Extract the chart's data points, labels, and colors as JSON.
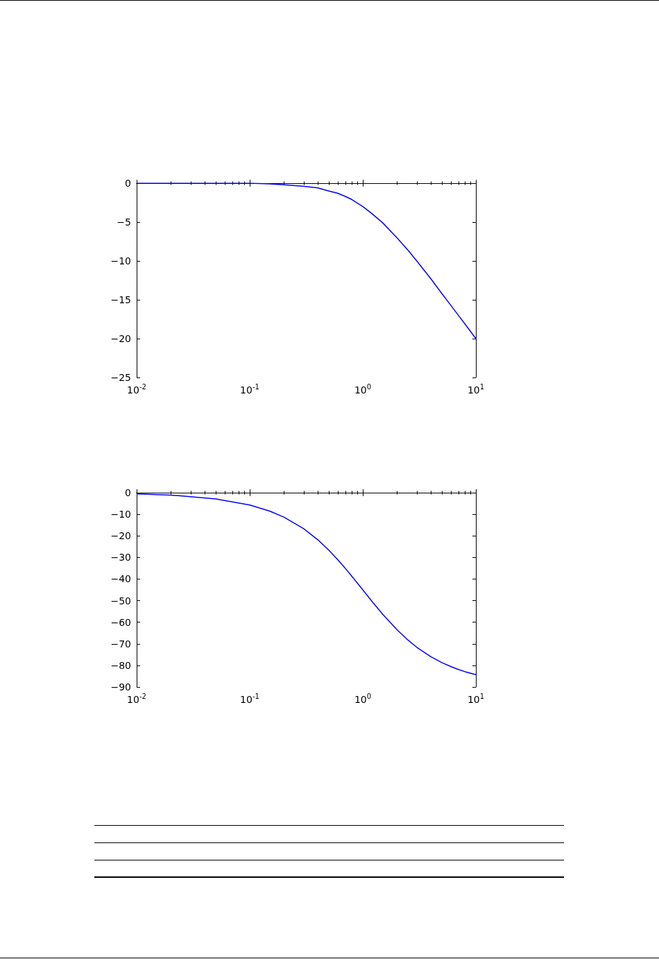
{
  "chart_data": [
    {
      "type": "line",
      "log": "x",
      "grid": false,
      "marker": "none",
      "line_style": "solid",
      "x": [
        0.01,
        0.1,
        0.15,
        0.2,
        0.3,
        0.4,
        0.5,
        0.6,
        0.7,
        0.8,
        1,
        1.2,
        1.5,
        2,
        2.5,
        3,
        4,
        5,
        6,
        7,
        8,
        10
      ],
      "series": [
        {
          "color": "#0000ff",
          "values": [
            0,
            0,
            -0.1,
            -0.2,
            -0.4,
            -0.6,
            -1,
            -1.3,
            -1.7,
            -2.1,
            -3,
            -3.9,
            -5.1,
            -7,
            -8.6,
            -10,
            -12.3,
            -14.2,
            -15.7,
            -17,
            -18.1,
            -20
          ]
        }
      ],
      "xlim": [
        0.01,
        10
      ],
      "xticks": [
        {
          "value": 0.01,
          "label": "10$^{-2}$"
        },
        {
          "value": 0.1,
          "label": "10$^{-1}$"
        },
        {
          "value": 1,
          "label": "10$^{0}$"
        },
        {
          "value": 10,
          "label": "10$^{1}$"
        }
      ],
      "ylim": [
        -25,
        0
      ],
      "yticks": [
        {
          "value": -25,
          "label": "−25"
        },
        {
          "value": -20,
          "label": "−20"
        },
        {
          "value": -15,
          "label": "−15"
        },
        {
          "value": -10,
          "label": "−10"
        },
        {
          "value": -5,
          "label": "−5"
        },
        0
      ]
    },
    {
      "type": "line",
      "log": "x",
      "grid": false,
      "marker": "none",
      "line_style": "solid",
      "x": [
        0.01,
        0.02,
        0.05,
        0.1,
        0.15,
        0.2,
        0.3,
        0.4,
        0.5,
        0.6,
        0.7,
        0.8,
        1,
        1.2,
        1.5,
        2,
        2.5,
        3,
        4,
        5,
        6,
        7,
        8,
        10
      ],
      "series": [
        {
          "color": "#0000ff",
          "values": [
            -0.6,
            -1.1,
            -2.9,
            -5.7,
            -8.5,
            -11.3,
            -16.7,
            -21.8,
            -26.6,
            -31,
            -35,
            -38.7,
            -45,
            -50.2,
            -56.3,
            -63.4,
            -68.2,
            -71.6,
            -76,
            -78.7,
            -80.5,
            -81.9,
            -82.9,
            -84.3
          ]
        }
      ],
      "xlim": [
        0.01,
        10
      ],
      "xticks": [
        {
          "value": 0.01,
          "label": "10$^{-2}$"
        },
        {
          "value": 0.1,
          "label": "10$^{-1}$"
        },
        {
          "value": 1,
          "label": "10$^{0}$"
        },
        {
          "value": 10,
          "label": "10$^{1}$"
        }
      ],
      "ylim": [
        -90,
        0
      ],
      "yticks": [
        {
          "value": -90,
          "label": "−90"
        },
        {
          "value": -80,
          "label": "−80"
        },
        {
          "value": -70,
          "label": "−70"
        },
        {
          "value": -60,
          "label": "−60"
        },
        {
          "value": -50,
          "label": "−50"
        },
        {
          "value": -40,
          "label": "−40"
        },
        {
          "value": -30,
          "label": "−30"
        },
        {
          "value": -20,
          "label": "−20"
        },
        {
          "value": -10,
          "label": "−10"
        },
        0
      ]
    }
  ]
}
